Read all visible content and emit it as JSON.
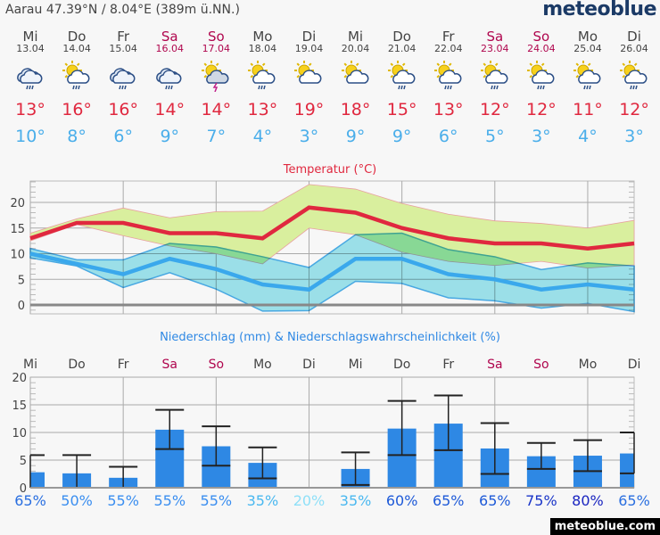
{
  "header": {
    "location": "Aarau  47.39°N / 8.04°E (389m ü.NN.)",
    "logo": "meteoblue"
  },
  "days": [
    {
      "name": "Mi",
      "date": "13.04",
      "weekend": false,
      "icon": "rain-cloud-icon",
      "tmax": "13°",
      "tmin": "10°"
    },
    {
      "name": "Do",
      "date": "14.04",
      "weekend": false,
      "icon": "sun-cloud-rain-icon",
      "tmax": "16°",
      "tmin": "8°"
    },
    {
      "name": "Fr",
      "date": "15.04",
      "weekend": false,
      "icon": "rain-cloud-icon",
      "tmax": "16°",
      "tmin": "6°"
    },
    {
      "name": "Sa",
      "date": "16.04",
      "weekend": true,
      "icon": "rain-cloud-icon",
      "tmax": "14°",
      "tmin": "9°"
    },
    {
      "name": "So",
      "date": "17.04",
      "weekend": true,
      "icon": "thunderstorm-icon",
      "tmax": "14°",
      "tmin": "7°"
    },
    {
      "name": "Mo",
      "date": "18.04",
      "weekend": false,
      "icon": "sun-cloud-rain-icon",
      "tmax": "13°",
      "tmin": "4°"
    },
    {
      "name": "Di",
      "date": "19.04",
      "weekend": false,
      "icon": "sun-cloud-icon",
      "tmax": "19°",
      "tmin": "3°"
    },
    {
      "name": "Mi",
      "date": "20.04",
      "weekend": false,
      "icon": "sun-cloud-icon",
      "tmax": "18°",
      "tmin": "9°"
    },
    {
      "name": "Do",
      "date": "21.04",
      "weekend": false,
      "icon": "sun-cloud-rain-icon",
      "tmax": "15°",
      "tmin": "9°"
    },
    {
      "name": "Fr",
      "date": "22.04",
      "weekend": false,
      "icon": "sun-cloud-rain-icon",
      "tmax": "13°",
      "tmin": "6°"
    },
    {
      "name": "Sa",
      "date": "23.04",
      "weekend": true,
      "icon": "sun-cloud-rain-icon",
      "tmax": "12°",
      "tmin": "5°"
    },
    {
      "name": "So",
      "date": "24.04",
      "weekend": true,
      "icon": "sun-cloud-rain-icon",
      "tmax": "12°",
      "tmin": "3°"
    },
    {
      "name": "Mo",
      "date": "25.04",
      "weekend": false,
      "icon": "sun-cloud-rain-icon",
      "tmax": "11°",
      "tmin": "4°"
    },
    {
      "name": "Di",
      "date": "26.04",
      "weekend": false,
      "icon": "sun-cloud-rain-icon",
      "tmax": "12°",
      "tmin": "3°"
    }
  ],
  "colors": {
    "max": "#e0283f",
    "min": "#3aa8ec",
    "maxband": "#d9ef9e",
    "minband": "#a0e7f0",
    "bar": "#2e88e4",
    "weekend": "#b0064e"
  },
  "chart_data": [
    {
      "type": "line",
      "title": "Temperatur (°C)",
      "ylim": [
        -1.7,
        24
      ],
      "yticks": [
        "0",
        "5",
        "10",
        "15",
        "20"
      ],
      "series": [
        {
          "name": "max",
          "values": [
            13,
            16,
            16,
            14,
            14,
            13,
            19,
            18,
            15,
            13,
            12,
            12,
            11,
            12
          ]
        },
        {
          "name": "min",
          "values": [
            10,
            8,
            6,
            9,
            7,
            4,
            3,
            9,
            9,
            6,
            5,
            3,
            4,
            3
          ]
        },
        {
          "name": "max_upper",
          "values": [
            14,
            16.8,
            18.9,
            17,
            18.2,
            18.3,
            23.5,
            22.6,
            19.8,
            17.7,
            16.4,
            15.9,
            15,
            16.5
          ]
        },
        {
          "name": "max_lower",
          "values": [
            12.5,
            15.7,
            13.5,
            11.5,
            10,
            8,
            15,
            13.7,
            10.3,
            8.5,
            7.7,
            8.5,
            7.2,
            7.8
          ]
        },
        {
          "name": "min_upper",
          "values": [
            11,
            8.8,
            8.8,
            12,
            11.3,
            9.4,
            7.3,
            13.7,
            14,
            10.8,
            9.4,
            6.9,
            8.2,
            7.6
          ]
        },
        {
          "name": "min_lower",
          "values": [
            9.2,
            7.6,
            3.4,
            6.3,
            3.1,
            -1.2,
            -1.1,
            4.6,
            4.2,
            1.4,
            0.8,
            -0.6,
            0.3,
            -1.3
          ]
        }
      ]
    },
    {
      "type": "bar",
      "title": "Niederschlag (mm) & Niederschlagswahrscheinlichkeit (%)",
      "ylim": [
        0,
        20
      ],
      "yticks": [
        "0",
        "5",
        "10",
        "15",
        "20"
      ],
      "categories": [
        "Mi",
        "Do",
        "Fr",
        "Sa",
        "So",
        "Mo",
        "Di",
        "Mi",
        "Do",
        "Fr",
        "Sa",
        "So",
        "Mo",
        "Di"
      ],
      "values": [
        2.8,
        2.6,
        1.8,
        10.5,
        7.5,
        4.5,
        0,
        3.4,
        10.7,
        11.6,
        7.1,
        5.7,
        5.8,
        6.2
      ],
      "low": [
        0,
        0,
        0,
        7,
        4,
        1.7,
        null,
        0.5,
        5.9,
        6.8,
        2.5,
        3.4,
        3,
        2.6
      ],
      "high": [
        5.9,
        5.9,
        3.8,
        14.1,
        11.1,
        7.3,
        null,
        6.4,
        15.7,
        16.7,
        11.7,
        8.1,
        8.6,
        10
      ],
      "probability": [
        "65%",
        "50%",
        "55%",
        "55%",
        "55%",
        "35%",
        "20%",
        "35%",
        "60%",
        "65%",
        "65%",
        "75%",
        "80%",
        "65%"
      ],
      "prob_colors": [
        "#2a6fe0",
        "#3a8ef0",
        "#3a8ef0",
        "#3a8ef0",
        "#3a8ef0",
        "#4ab8f0",
        "#8fe0f8",
        "#4ab8f0",
        "#1e5ad8",
        "#1e5ad8",
        "#1e5ad8",
        "#1a35c8",
        "#1a25c0",
        "#2a6fe0"
      ]
    }
  ],
  "footer": "meteoblue.com"
}
